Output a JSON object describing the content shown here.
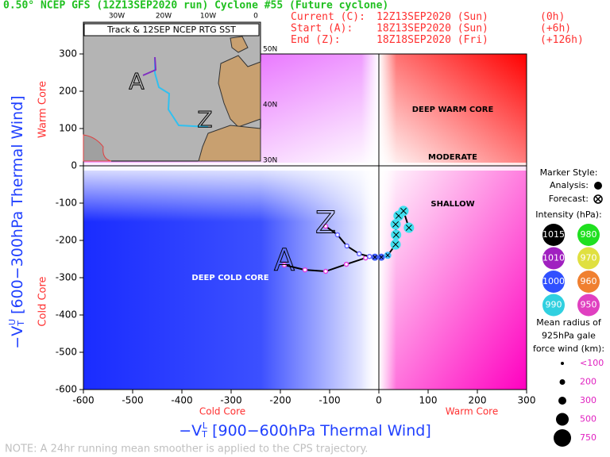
{
  "chart_data": {
    "type": "phase",
    "title": "0.50° NCEP GFS (12Z13SEP2020 run) Cyclone #55 (Future cyclone)",
    "info": [
      [
        "Current (C):",
        "12Z13SEP2020 (Sun)",
        "(0h)"
      ],
      [
        "Start (A):",
        "18Z13SEP2020 (Sun)",
        "(+6h)"
      ],
      [
        "End (Z):",
        "18Z18SEP2020 (Fri)",
        "(+126h)"
      ]
    ],
    "xlim": [
      -600,
      300
    ],
    "ylim": [
      -600,
      300
    ],
    "xticks": [
      -600,
      -500,
      -400,
      -300,
      -200,
      -100,
      0,
      100,
      200,
      300
    ],
    "yticks": [
      -600,
      -500,
      -400,
      -300,
      -200,
      -100,
      0,
      100,
      200,
      300
    ],
    "x_label": {
      "main": "−V",
      "sub": "T",
      "sup": "L",
      "rest": " [900−600hPa Thermal Wind]"
    },
    "y_label": {
      "main": "−V",
      "sub": "T",
      "sup": "U",
      "rest": " [600−300hPa Thermal Wind]"
    },
    "x_side": [
      "Cold Core",
      "Warm Core"
    ],
    "y_side": [
      "Cold Core",
      "Warm Core"
    ],
    "regions": [
      "DEEP WARM CORE",
      "MODERATE",
      "SHALLOW",
      "DEEP COLD CORE"
    ],
    "start_label": "A",
    "end_label": "Z",
    "tracks": [
      {
        "x": [
          -192,
          -150,
          -108,
          -66,
          -27,
          -8,
          5,
          18,
          34,
          35,
          34,
          40,
          50,
          61
        ],
        "y": [
          -266,
          -279,
          -283,
          -264,
          -247,
          -245,
          -245,
          -240,
          -211,
          -185,
          -157,
          -134,
          -121,
          -166
        ],
        "colors": [
          "#e040e0",
          "#e040e0",
          "#e040e0",
          "#e040e0",
          "#e040e0",
          "#4060ff",
          "#4060ff",
          "#40c0ff",
          "#40e0f0",
          "#40e0f0",
          "#40e0f0",
          "#40e0f0",
          "#40e0f0",
          "#40e0f0"
        ],
        "forecast": [
          false,
          false,
          false,
          false,
          false,
          true,
          true,
          true,
          true,
          true,
          true,
          true,
          true,
          true
        ]
      },
      {
        "x": [
          -108,
          -84,
          -65,
          -40,
          -19
        ],
        "y": [
          -162,
          -185,
          -215,
          -236,
          -243
        ],
        "colors": [
          "#e040e0",
          "#6060ff",
          "#6060ff",
          "#6060ff",
          "#6060ff"
        ],
        "forecast": [
          false,
          false,
          false,
          false,
          false
        ]
      }
    ],
    "inset": {
      "title": "Track & 12SEP NCEP RTG SST",
      "lon": [
        "30W",
        "20W",
        "10W",
        "0"
      ],
      "lat": [
        "50N",
        "40N",
        "30N"
      ]
    },
    "legend": {
      "marker_title": "Marker Style:",
      "analysis": "Analysis:",
      "forecast": "Forecast:",
      "intensity_title": "Intensity (hPa):",
      "intensity": [
        {
          "label": "1015",
          "color": "#000000"
        },
        {
          "label": "980",
          "color": "#20e020"
        },
        {
          "label": "1010",
          "color": "#a020c0"
        },
        {
          "label": "970",
          "color": "#e0e040"
        },
        {
          "label": "1000",
          "color": "#3050ff"
        },
        {
          "label": "960",
          "color": "#f08030"
        },
        {
          "label": "990",
          "color": "#30d0e0"
        },
        {
          "label": "950",
          "color": "#e040c0"
        }
      ],
      "radius_title": [
        "Mean radius of",
        "925hPa gale",
        "force wind (km):"
      ],
      "radius": [
        "<100",
        "200",
        "300",
        "500",
        "750"
      ]
    },
    "note": "NOTE: A 24hr running mean smoother is applied to the CPS trajectory."
  }
}
